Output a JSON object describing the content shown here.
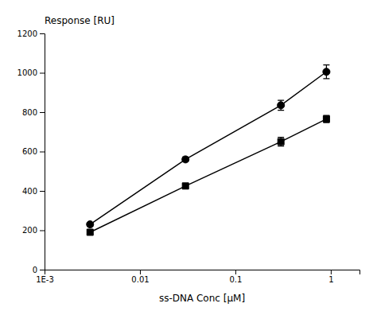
{
  "chart_data": {
    "type": "line",
    "xlabel": "ss-DNA Conc [μM]",
    "ylabel": "Response [RU]",
    "log": "x",
    "grid": false,
    "xlim": [
      0.001,
      2.0
    ],
    "ylim": [
      0,
      1200
    ],
    "xticks": [
      {
        "value": 0.001,
        "label": "1E-3"
      },
      0.01,
      0.1,
      1
    ],
    "yticks": [
      0,
      200,
      400,
      600,
      800,
      1000,
      1200
    ],
    "x": [
      0.003,
      0.03,
      0.3,
      0.9
    ],
    "series": [
      {
        "color": "#000000",
        "marker": "circle",
        "line_style": "solid",
        "values": [
          230,
          560,
          835,
          1005
        ],
        "yerr": [
          10,
          12,
          25,
          35
        ]
      },
      {
        "color": "#000000",
        "marker": "square",
        "line_style": "solid",
        "values": [
          190,
          425,
          650,
          765
        ],
        "yerr": [
          8,
          10,
          22,
          18
        ]
      }
    ]
  }
}
